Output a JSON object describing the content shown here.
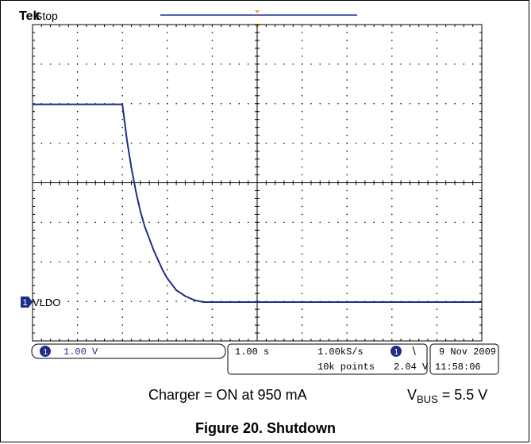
{
  "header": {
    "brand": "Tek",
    "status": "Stop"
  },
  "channel": {
    "number": "1",
    "label": "VLDO",
    "scale": "1.00 V"
  },
  "timebase": {
    "scale": "1.00 s",
    "sample_rate": "1.00kS/s",
    "record_length": "10k points"
  },
  "trigger": {
    "channel": "1",
    "slope_symbol": "∖",
    "level": "2.04 V"
  },
  "datetime": {
    "date": "9 Nov 2009",
    "time": "11:58:06"
  },
  "caption": {
    "left": "Charger = ON at 950 mA",
    "vbus_prefix": "V",
    "vbus_sub": "BUS",
    "vbus_value": " = 5.5 V"
  },
  "figure_title": "Figure 20. Shutdown",
  "colors": {
    "trace": "#1f2d8a",
    "trigger_marker": "#f5a623",
    "grid": "#000000"
  },
  "chart_data": {
    "type": "line",
    "xlabel": "",
    "ylabel": "",
    "x_unit": "s",
    "y_unit": "V",
    "x_per_div": 1.0,
    "y_per_div": 1.0,
    "xlim": [
      -5,
      5
    ],
    "ylim": [
      -1,
      7
    ],
    "grid": true,
    "series": [
      {
        "x": [
          -5.0,
          -3.0,
          -2.9,
          -2.8,
          -2.7,
          -2.6,
          -2.5,
          -2.4,
          -2.3,
          -2.2,
          -2.1,
          -2.0,
          -1.9,
          -1.8,
          -1.6,
          -1.4,
          -1.2,
          -0.8,
          0,
          2.0,
          4.0,
          5.0
        ],
        "y": [
          5.0,
          5.0,
          4.1,
          3.4,
          2.8,
          2.3,
          1.9,
          1.6,
          1.3,
          1.05,
          0.8,
          0.6,
          0.45,
          0.3,
          0.15,
          0.05,
          0.0,
          0.0,
          0.0,
          0.0,
          0.0,
          0.0
        ]
      }
    ]
  }
}
